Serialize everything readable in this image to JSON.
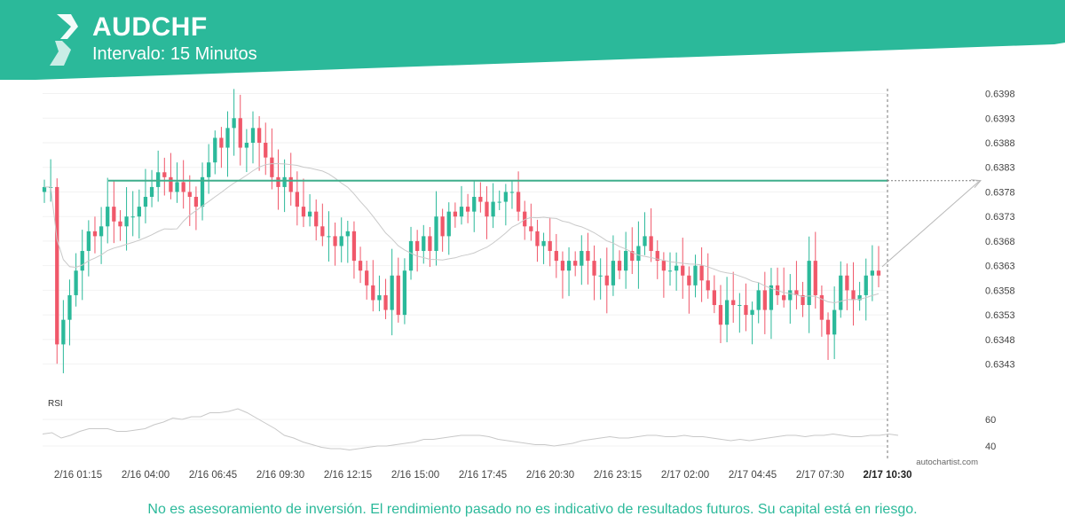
{
  "header": {
    "symbol": "AUDCHF",
    "interval": "Intervalo: 15 Minutos",
    "brand_color": "#2bb99a",
    "logo_icon": "autochartist-logo-icon"
  },
  "chart_data": {
    "type": "candlestick",
    "price_axis": {
      "ticks": [
        "0.6398",
        "0.6393",
        "0.6388",
        "0.6383",
        "0.6378",
        "0.6373",
        "0.6368",
        "0.6363",
        "0.6358",
        "0.6353",
        "0.6348",
        "0.6343"
      ],
      "range": [
        0.63395,
        0.6399
      ]
    },
    "time_axis": {
      "ticks": [
        "2/16 01:15",
        "2/16 04:00",
        "2/16 06:45",
        "2/16 09:30",
        "2/16 12:15",
        "2/16 15:00",
        "2/16 17:45",
        "2/16 20:30",
        "2/16 23:15",
        "2/17 02:00",
        "2/17 04:45",
        "2/17 07:30",
        "2/17 10:30"
      ],
      "current": "2/17 10:30"
    },
    "resistance_level": 0.63803,
    "projection_target": 0.63803,
    "up_color": "#2bb99a",
    "down_color": "#f0586a",
    "closes": [
      0.6379,
      0.6379,
      0.6347,
      0.6352,
      0.6357,
      0.6362,
      0.6366,
      0.637,
      0.6369,
      0.6371,
      0.6375,
      0.6372,
      0.6371,
      0.6373,
      0.6373,
      0.6375,
      0.6377,
      0.6379,
      0.6382,
      0.6381,
      0.6378,
      0.638,
      0.6378,
      0.6377,
      0.6375,
      0.6381,
      0.6384,
      0.6389,
      0.6387,
      0.6391,
      0.6393,
      0.6387,
      0.6388,
      0.6391,
      0.6388,
      0.6385,
      0.6381,
      0.6379,
      0.6381,
      0.6378,
      0.6375,
      0.6373,
      0.6374,
      0.6371,
      0.6369,
      0.6369,
      0.6367,
      0.6369,
      0.637,
      0.6364,
      0.6362,
      0.6359,
      0.6356,
      0.6357,
      0.6354,
      0.6361,
      0.6353,
      0.6362,
      0.6368,
      0.6366,
      0.6369,
      0.6366,
      0.6373,
      0.6369,
      0.6374,
      0.6373,
      0.6375,
      0.6374,
      0.6377,
      0.6376,
      0.6373,
      0.6376,
      0.6376,
      0.6378,
      0.6378,
      0.6374,
      0.6371,
      0.637,
      0.6367,
      0.6368,
      0.6366,
      0.6364,
      0.6362,
      0.6364,
      0.6363,
      0.6366,
      0.6364,
      0.6361,
      0.6361,
      0.6359,
      0.6364,
      0.6362,
      0.6366,
      0.6364,
      0.6367,
      0.6369,
      0.6366,
      0.6364,
      0.6362,
      0.6362,
      0.6363,
      0.6361,
      0.6359,
      0.6363,
      0.636,
      0.6358,
      0.6355,
      0.6351,
      0.6356,
      0.6355,
      0.6355,
      0.6353,
      0.6354,
      0.6358,
      0.6354,
      0.6359,
      0.6357,
      0.6356,
      0.6358,
      0.6357,
      0.6355,
      0.6364,
      0.6357,
      0.6352,
      0.6349,
      0.6354,
      0.6361,
      0.6358,
      0.6356,
      0.6357,
      0.6361,
      0.6362,
      0.6361
    ],
    "rsi": {
      "label": "RSI",
      "ticks": [
        "60",
        "40"
      ],
      "values": [
        49,
        50,
        46,
        48,
        51,
        53,
        53,
        53,
        51,
        51,
        52,
        53,
        56,
        58,
        61,
        60,
        62,
        62,
        65,
        65,
        66,
        68,
        65,
        61,
        57,
        53,
        48,
        46,
        43,
        41,
        39,
        38,
        38,
        37,
        38,
        39,
        40,
        40,
        41,
        42,
        43,
        45,
        45,
        46,
        47,
        48,
        48,
        48,
        47,
        45,
        44,
        43,
        42,
        41,
        41,
        40,
        41,
        42,
        44,
        45,
        46,
        47,
        46,
        46,
        47,
        48,
        48,
        47,
        47,
        48,
        47,
        47,
        46,
        45,
        44,
        45,
        44,
        45,
        46,
        47,
        48,
        48,
        47,
        48,
        48,
        49,
        48,
        47,
        47,
        48,
        48,
        49,
        48
      ],
      "color": "#c8c8c8"
    }
  },
  "watermark": "autochartist.com",
  "disclaimer": "No es asesoramiento de inversión. El rendimiento pasado no es indicativo de resultados futuros. Su capital está en riesgo."
}
